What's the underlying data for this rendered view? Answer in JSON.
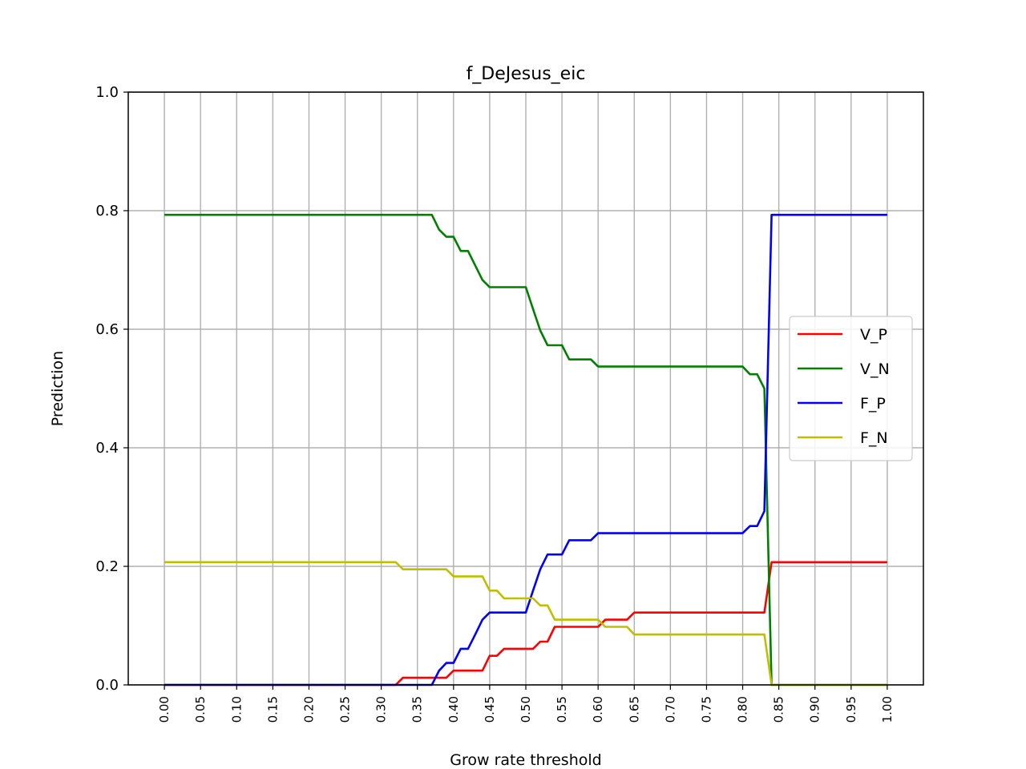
{
  "chart_data": {
    "type": "line",
    "title": "f_DeJesus_eic",
    "xlabel": "Grow rate threshold",
    "ylabel": "Prediction",
    "xlim": [
      -0.05,
      1.05
    ],
    "ylim": [
      0.0,
      1.0
    ],
    "xticks": [
      "0.00",
      "0.05",
      "0.10",
      "0.15",
      "0.20",
      "0.25",
      "0.30",
      "0.35",
      "0.40",
      "0.45",
      "0.50",
      "0.55",
      "0.60",
      "0.65",
      "0.70",
      "0.75",
      "0.80",
      "0.85",
      "0.90",
      "0.95",
      "1.00"
    ],
    "yticks": [
      "0.0",
      "0.2",
      "0.4",
      "0.6",
      "0.8",
      "1.0"
    ],
    "grid": true,
    "legend_position": "center-right",
    "series": [
      {
        "name": "V_P",
        "color": "#ff0000",
        "x": [
          0.0,
          0.32,
          0.33,
          0.39,
          0.4,
          0.44,
          0.45,
          0.46,
          0.47,
          0.51,
          0.52,
          0.53,
          0.54,
          0.6,
          0.61,
          0.64,
          0.65,
          0.83,
          0.84,
          1.0
        ],
        "y": [
          0.0,
          0.0,
          0.012,
          0.012,
          0.024,
          0.024,
          0.049,
          0.049,
          0.061,
          0.061,
          0.073,
          0.073,
          0.098,
          0.098,
          0.11,
          0.11,
          0.122,
          0.122,
          0.207,
          0.207
        ]
      },
      {
        "name": "V_N",
        "color": "#008000",
        "x": [
          0.0,
          0.37,
          0.38,
          0.39,
          0.4,
          0.41,
          0.42,
          0.44,
          0.45,
          0.5,
          0.51,
          0.52,
          0.53,
          0.55,
          0.56,
          0.59,
          0.6,
          0.8,
          0.81,
          0.82,
          0.83,
          0.84,
          1.0
        ],
        "y": [
          0.793,
          0.793,
          0.768,
          0.756,
          0.756,
          0.732,
          0.732,
          0.683,
          0.671,
          0.671,
          0.634,
          0.598,
          0.573,
          0.573,
          0.549,
          0.549,
          0.537,
          0.537,
          0.524,
          0.524,
          0.5,
          0.0,
          0.0
        ]
      },
      {
        "name": "F_P",
        "color": "#0000ff",
        "x": [
          0.0,
          0.37,
          0.38,
          0.39,
          0.4,
          0.41,
          0.42,
          0.43,
          0.44,
          0.45,
          0.5,
          0.51,
          0.52,
          0.53,
          0.54,
          0.55,
          0.56,
          0.59,
          0.6,
          0.8,
          0.81,
          0.82,
          0.83,
          0.84,
          1.0
        ],
        "y": [
          0.0,
          0.0,
          0.024,
          0.037,
          0.037,
          0.061,
          0.061,
          0.085,
          0.11,
          0.122,
          0.122,
          0.159,
          0.195,
          0.22,
          0.22,
          0.22,
          0.244,
          0.244,
          0.256,
          0.256,
          0.268,
          0.268,
          0.293,
          0.793,
          0.793
        ]
      },
      {
        "name": "F_N",
        "color": "#bfbf00",
        "x": [
          0.0,
          0.32,
          0.33,
          0.39,
          0.4,
          0.44,
          0.45,
          0.46,
          0.47,
          0.51,
          0.52,
          0.53,
          0.54,
          0.6,
          0.61,
          0.64,
          0.65,
          0.83,
          0.84,
          1.0
        ],
        "y": [
          0.207,
          0.207,
          0.195,
          0.195,
          0.183,
          0.183,
          0.159,
          0.159,
          0.146,
          0.146,
          0.134,
          0.134,
          0.11,
          0.11,
          0.098,
          0.098,
          0.085,
          0.085,
          0.0,
          0.0
        ]
      }
    ]
  }
}
